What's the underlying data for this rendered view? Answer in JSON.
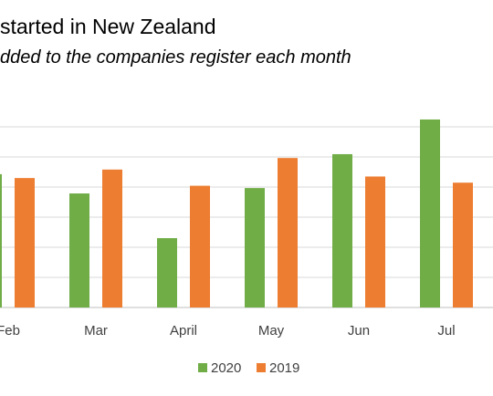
{
  "chart_data": {
    "type": "bar",
    "title": "started in New Zealand",
    "subtitle": "dded to the companies register each month",
    "categories": [
      "Feb",
      "Mar",
      "April",
      "May",
      "Jun",
      "Jul"
    ],
    "series": [
      {
        "name": "2020",
        "color": "#70AD47",
        "values": [
          17.3,
          14.8,
          9.0,
          15.5,
          19.9,
          24.4
        ]
      },
      {
        "name": "2019",
        "color": "#ED7D31",
        "values": [
          16.8,
          17.9,
          15.8,
          19.4,
          17.0,
          16.2
        ]
      }
    ],
    "ylim": [
      0,
      27
    ],
    "grid": true,
    "legend": "bottom",
    "xlabel": "",
    "ylabel": ""
  }
}
